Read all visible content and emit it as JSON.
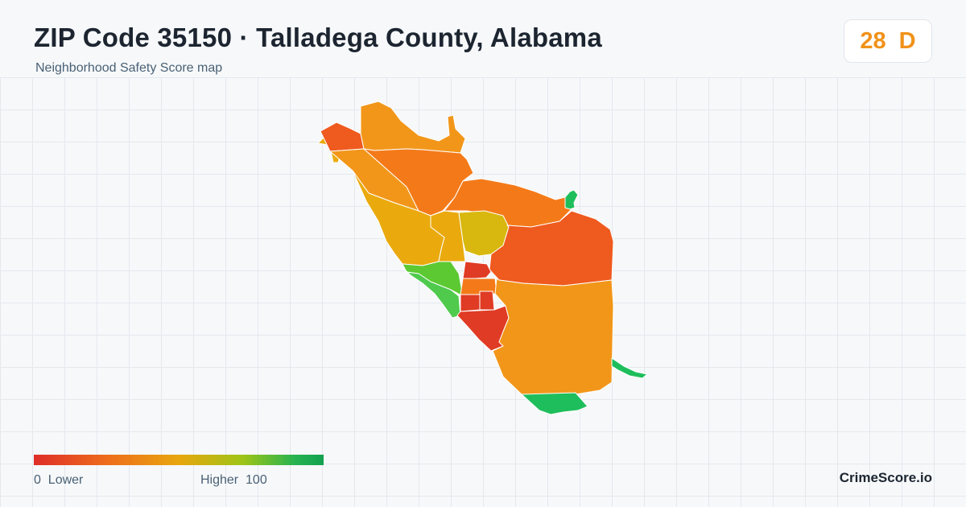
{
  "header": {
    "title": "ZIP Code 35150 · Talladega County, Alabama",
    "subtitle": "Neighborhood Safety Score map"
  },
  "score": {
    "value": "28",
    "grade": "D",
    "color": "#f0921a"
  },
  "legend": {
    "low_value": "0",
    "low_label": "Lower",
    "high_label": "Higher",
    "high_value": "100",
    "colors": [
      "#de2e28",
      "#ee6c1c",
      "#e8a60e",
      "#9fc417",
      "#13a14f"
    ]
  },
  "brand": "CrimeScore.io",
  "map": {
    "region_colors": {
      "red": "#e03b24",
      "red_orange": "#ef5a1e",
      "orange": "#f47a19",
      "amber": "#f2961a",
      "gold": "#eaaa0e",
      "yellow": "#d8b80e",
      "light_green": "#5cc932",
      "green": "#4fca4d",
      "dark_green": "#1fbe5c"
    }
  }
}
